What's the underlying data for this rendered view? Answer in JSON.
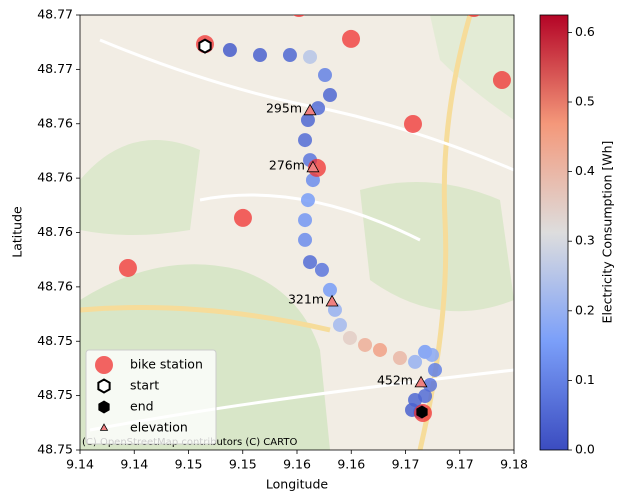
{
  "chart_data": {
    "type": "scatter",
    "xlabel": "Longitude",
    "ylabel": "Latitude",
    "xlim": [
      9.14,
      9.18
    ],
    "xticks": [
      {
        "value": 9.14,
        "label": "9.14"
      },
      {
        "value": 9.145,
        "label": "9.14"
      },
      {
        "value": 9.15,
        "label": "9.15"
      },
      {
        "value": 9.155,
        "label": "9.15"
      },
      {
        "value": 9.16,
        "label": "9.16"
      },
      {
        "value": 9.165,
        "label": "9.16"
      },
      {
        "value": 9.17,
        "label": "9.17"
      },
      {
        "value": 9.175,
        "label": "9.17"
      },
      {
        "value": 9.18,
        "label": "9.18"
      }
    ],
    "ylim": [
      48.7475,
      48.7675
    ],
    "yticks": [
      {
        "value": 48.7475,
        "label": "48.75"
      },
      {
        "value": 48.75,
        "label": "48.75"
      },
      {
        "value": 48.7525,
        "label": "48.75"
      },
      {
        "value": 48.755,
        "label": "48.76"
      },
      {
        "value": 48.7575,
        "label": "48.76"
      },
      {
        "value": 48.76,
        "label": "48.76"
      },
      {
        "value": 48.7625,
        "label": "48.76"
      },
      {
        "value": 48.765,
        "label": "48.77"
      },
      {
        "value": 48.7675,
        "label": "48.77"
      }
    ],
    "colorbar": {
      "label": "Electricity Consumption [Wh]",
      "cmap": "coolwarm",
      "lim": [
        0,
        0.625
      ],
      "ticks": [
        {
          "value": 0,
          "label": "0.0"
        },
        0.1,
        0.2,
        0.3,
        0.4,
        0.5,
        0.6
      ]
    },
    "legend": "lower left",
    "attribution": "(C) OpenStreetMap contributors (C) CARTO",
    "series": [
      {
        "marker": "route",
        "x": [
          9.15152,
          9.15382,
          9.15659,
          9.15935,
          9.1612,
          9.16258,
          9.16304,
          9.16194,
          9.16101,
          9.16074,
          9.1612,
          9.16147,
          9.16101,
          9.16074,
          9.16074,
          9.1612,
          9.1623,
          9.16304,
          9.1635,
          9.16396,
          9.16488,
          9.16627,
          9.16765,
          9.16949,
          9.17088,
          9.1718,
          9.17244,
          9.17272,
          9.17226,
          9.1718,
          9.17088,
          9.1706,
          9.17134
        ],
        "y": [
          48.76607,
          48.76589,
          48.76566,
          48.76566,
          48.76557,
          48.76474,
          48.76382,
          48.76322,
          48.76267,
          48.76175,
          48.76083,
          48.75991,
          48.75899,
          48.75807,
          48.75716,
          48.75614,
          48.75578,
          48.75486,
          48.75394,
          48.75325,
          48.75265,
          48.75233,
          48.7521,
          48.75173,
          48.75155,
          48.75201,
          48.75187,
          48.75118,
          48.75049,
          48.74998,
          48.7498,
          48.74934,
          48.74925
        ],
        "values": [
          0.02,
          0.03,
          0.04,
          0.05,
          0.25,
          0.1,
          0.05,
          0.06,
          0.05,
          0.06,
          0.08,
          0.12,
          0.15,
          0.14,
          0.12,
          0.06,
          0.08,
          0.15,
          0.2,
          0.22,
          0.35,
          0.42,
          0.45,
          0.4,
          0.2,
          0.15,
          0.18,
          0.1,
          0.08,
          0.06,
          0.05,
          0.04,
          0.05
        ]
      },
      {
        "name": "bike station",
        "marker": "circle",
        "color": "#f03030",
        "x": [
          9.15152,
          9.16018,
          9.16498,
          9.17631,
          9.17889,
          9.17069,
          9.16184,
          9.15502,
          9.14442,
          9.17161
        ],
        "y": [
          48.76616,
          48.76782,
          48.7664,
          48.76782,
          48.76451,
          48.76249,
          48.76047,
          48.75817,
          48.75587,
          48.7492
        ]
      },
      {
        "name": "start",
        "marker": "hexagon-open",
        "color": "#000000",
        "x": [
          9.15152
        ],
        "y": [
          48.76607
        ]
      },
      {
        "name": "end",
        "marker": "hexagon",
        "color": "#000000",
        "x": [
          9.17152
        ],
        "y": [
          48.74925
        ]
      },
      {
        "name": "elevation",
        "marker": "triangle",
        "color": "#f08080",
        "x": [
          9.1612,
          9.16147,
          9.16323,
          9.17143
        ],
        "y": [
          48.76309,
          48.76047,
          48.7543,
          48.75058
        ],
        "labels": [
          "295m",
          "276m",
          "321m",
          "452m"
        ]
      }
    ]
  }
}
